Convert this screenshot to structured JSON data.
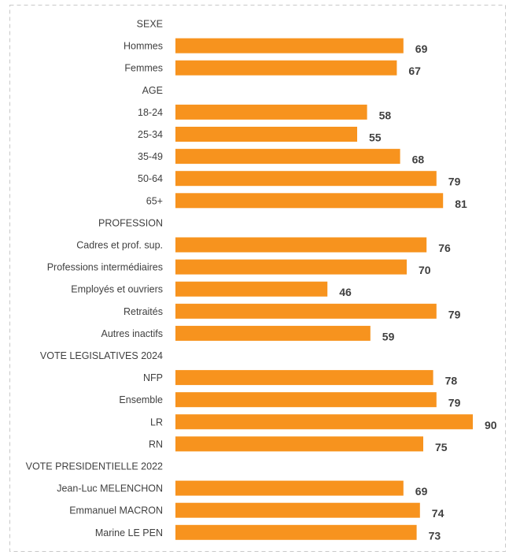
{
  "chart_data": {
    "type": "bar",
    "orientation": "horizontal",
    "bar_color": "#F7931E",
    "xlim": [
      0,
      100
    ],
    "grid": false,
    "rows": [
      {
        "label": "SEXE",
        "header": true
      },
      {
        "label": "Hommes",
        "value": 69
      },
      {
        "label": "Femmes",
        "value": 67
      },
      {
        "label": "AGE",
        "header": true
      },
      {
        "label": "18-24",
        "value": 58
      },
      {
        "label": "25-34",
        "value": 55
      },
      {
        "label": "35-49",
        "value": 68
      },
      {
        "label": "50-64",
        "value": 79
      },
      {
        "label": "65+",
        "value": 81
      },
      {
        "label": "PROFESSION",
        "header": true
      },
      {
        "label": "Cadres et prof. sup.",
        "value": 76
      },
      {
        "label": "Professions intermédiaires",
        "value": 70
      },
      {
        "label": "Employés et ouvriers",
        "value": 46
      },
      {
        "label": "Retraités",
        "value": 79
      },
      {
        "label": "Autres inactifs",
        "value": 59
      },
      {
        "label": "VOTE LEGISLATIVES 2024",
        "header": true
      },
      {
        "label": "NFP",
        "value": 78
      },
      {
        "label": "Ensemble",
        "value": 79
      },
      {
        "label": "LR",
        "value": 90
      },
      {
        "label": "RN",
        "value": 75
      },
      {
        "label": "VOTE PRESIDENTIELLE 2022",
        "header": true
      },
      {
        "label": "Jean-Luc MELENCHON",
        "value": 69
      },
      {
        "label": "Emmanuel MACRON",
        "value": 74
      },
      {
        "label": "Marine LE PEN",
        "value": 73
      }
    ]
  }
}
